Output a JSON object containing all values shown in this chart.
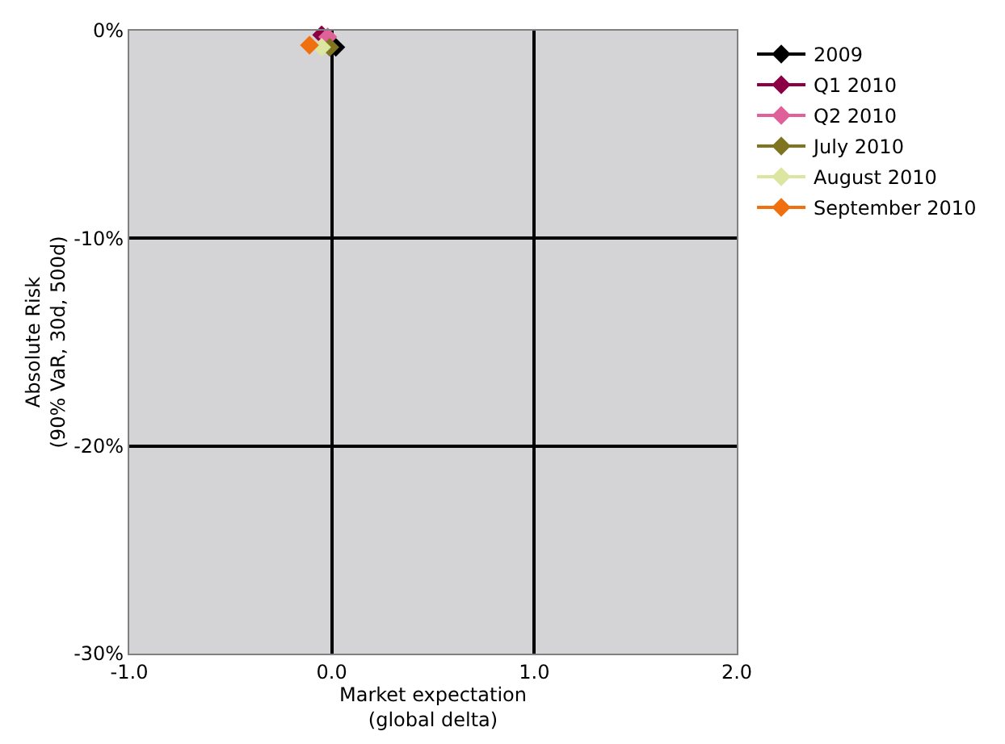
{
  "chart_data": {
    "type": "scatter",
    "xlabel": "Market expectation\n(global delta)",
    "ylabel": "Absolute Risk\n(90% VaR, 30d, 500d)",
    "xlim": [
      -1,
      2
    ],
    "xticks": [
      {
        "value": -1,
        "label": "-1.0"
      },
      {
        "value": 0,
        "label": "0.0"
      },
      {
        "value": 1,
        "label": "1.0"
      },
      {
        "value": 2,
        "label": "2.0"
      }
    ],
    "ylim": [
      -30,
      0
    ],
    "yticks": [
      {
        "value": -30,
        "label": "-30%"
      },
      {
        "value": -20,
        "label": "-20%"
      },
      {
        "value": -10,
        "label": "-10%"
      },
      {
        "value": 0,
        "label": "0%"
      }
    ],
    "grid": true,
    "legend": "top right",
    "marker": "diamond",
    "series": [
      {
        "name": "2009",
        "color": "#000000",
        "x": [
          0.02
        ],
        "values": [
          -0.8
        ]
      },
      {
        "name": "Q1 2010",
        "color": "#8b0045",
        "x": [
          -0.05
        ],
        "values": [
          -0.2
        ]
      },
      {
        "name": "Q2 2010",
        "color": "#e0609a",
        "x": [
          -0.02
        ],
        "values": [
          -0.3
        ]
      },
      {
        "name": "July 2010",
        "color": "#7f7420",
        "x": [
          -0.01
        ],
        "values": [
          -0.8
        ]
      },
      {
        "name": "August 2010",
        "color": "#dce6a0",
        "x": [
          -0.05
        ],
        "values": [
          -0.8
        ]
      },
      {
        "name": "September 2010",
        "color": "#f07010",
        "x": [
          -0.11
        ],
        "values": [
          -0.7
        ]
      }
    ]
  }
}
